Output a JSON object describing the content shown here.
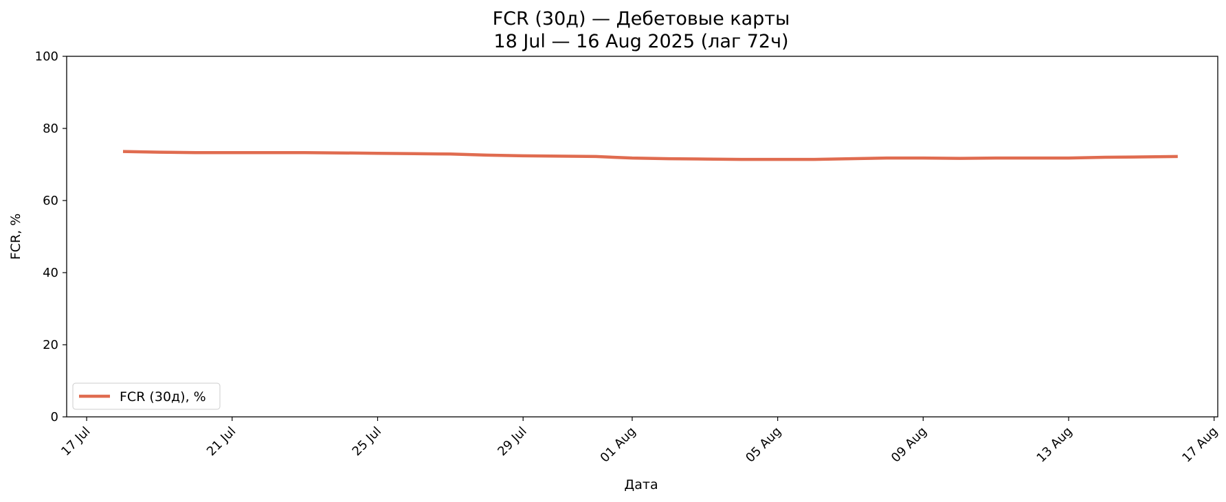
{
  "chart_data": {
    "type": "line",
    "title": "FCR (30д) — Дебетовые карты",
    "subtitle": "18 Jul — 16 Aug 2025 (лаг 72ч)",
    "xlabel": "Дата",
    "ylabel": "FCR, %",
    "ylim": [
      0,
      100
    ],
    "xlim": [
      "2025-07-16",
      "2025-08-17"
    ],
    "grid": false,
    "legend_position": "lower-left",
    "x_ticks": [
      "2025-07-17",
      "2025-07-21",
      "2025-07-25",
      "2025-07-29",
      "2025-08-01",
      "2025-08-05",
      "2025-08-09",
      "2025-08-13",
      "2025-08-17"
    ],
    "x_tick_labels": [
      "17 Jul",
      "21 Jul",
      "25 Jul",
      "29 Jul",
      "01 Aug",
      "05 Aug",
      "09 Aug",
      "13 Aug",
      "17 Aug"
    ],
    "y_ticks": [
      0,
      20,
      40,
      60,
      80,
      100
    ],
    "y_tick_labels": [
      "0",
      "20",
      "40",
      "60",
      "80",
      "100"
    ],
    "series": [
      {
        "name": "FCR (30д), %",
        "color": "#e06c50",
        "x": [
          "2025-07-18",
          "2025-07-19",
          "2025-07-20",
          "2025-07-21",
          "2025-07-22",
          "2025-07-23",
          "2025-07-24",
          "2025-07-25",
          "2025-07-26",
          "2025-07-27",
          "2025-07-28",
          "2025-07-29",
          "2025-07-30",
          "2025-07-31",
          "2025-08-01",
          "2025-08-02",
          "2025-08-03",
          "2025-08-04",
          "2025-08-05",
          "2025-08-06",
          "2025-08-07",
          "2025-08-08",
          "2025-08-09",
          "2025-08-10",
          "2025-08-11",
          "2025-08-12",
          "2025-08-13",
          "2025-08-14",
          "2025-08-15",
          "2025-08-16"
        ],
        "y": [
          73.6,
          73.4,
          73.3,
          73.3,
          73.3,
          73.3,
          73.2,
          73.1,
          73.0,
          72.9,
          72.6,
          72.4,
          72.3,
          72.2,
          71.8,
          71.6,
          71.5,
          71.4,
          71.4,
          71.4,
          71.6,
          71.8,
          71.8,
          71.7,
          71.8,
          71.8,
          71.8,
          72.0,
          72.1,
          72.2
        ]
      }
    ]
  }
}
